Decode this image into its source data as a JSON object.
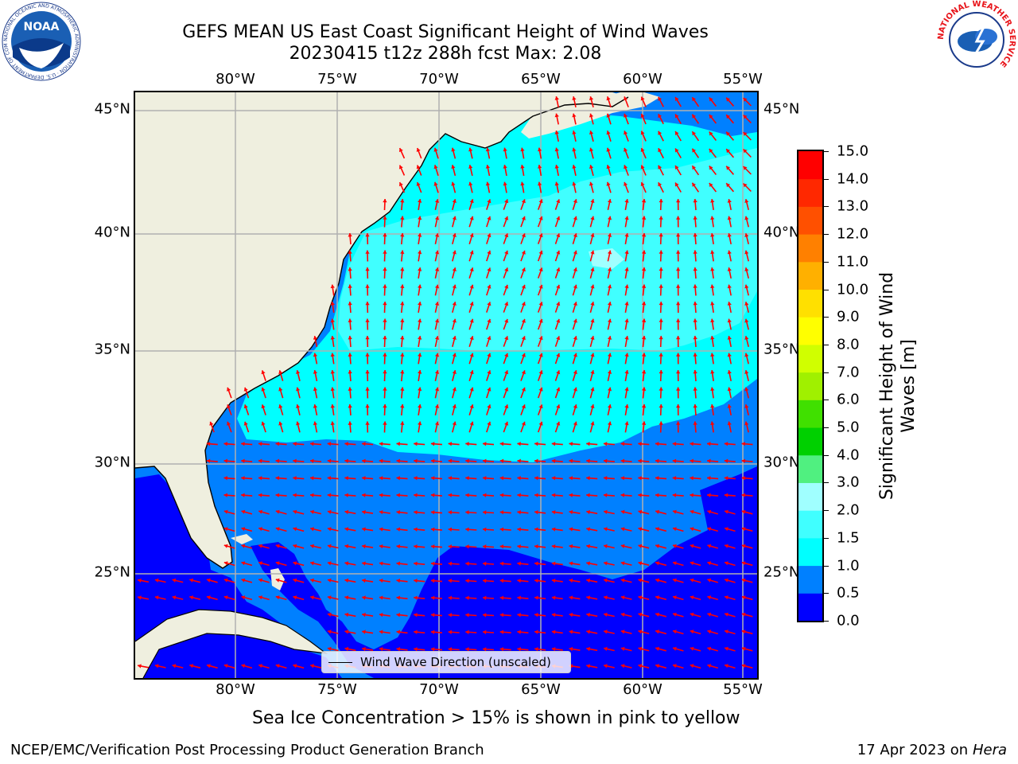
{
  "title": {
    "line1": "GEFS MEAN US East Coast Significant Height of Wind Waves",
    "line2": "20230415 t12z 288h fcst   Max: 2.08"
  },
  "map": {
    "lon_ticks": [
      "80°W",
      "75°W",
      "70°W",
      "65°W",
      "60°W",
      "55°W"
    ],
    "lat_ticks": [
      "45°N",
      "40°N",
      "35°N",
      "30°N",
      "25°N"
    ],
    "legend_label": "Wind Wave Direction (unscaled)",
    "arrow_color": "#ff0000",
    "land_color": "#efefdf",
    "grid_color": "#b0b0b0"
  },
  "colorbar": {
    "label": "Significant Height of Wind Waves [m]",
    "ticks": [
      "0.0",
      "0.5",
      "1.0",
      "1.5",
      "2.0",
      "3.0",
      "4.0",
      "5.0",
      "6.0",
      "7.0",
      "8.0",
      "9.0",
      "10.0",
      "11.0",
      "12.0",
      "13.0",
      "14.0",
      "15.0"
    ],
    "colors": [
      "#0000ff",
      "#0080ff",
      "#00ffff",
      "#40ffff",
      "#a0ffff",
      "#50f080",
      "#00d000",
      "#40e000",
      "#a0f000",
      "#d0ff00",
      "#ffff00",
      "#ffe000",
      "#ffb000",
      "#ff8000",
      "#ff5000",
      "#ff2800",
      "#ff0000"
    ]
  },
  "subtitle": "Sea Ice Concentration > 15% is shown in pink to yellow",
  "footer": {
    "left": "NCEP/EMC/Verification Post Processing Product Generation Branch",
    "right_date": "17 Apr 2023 on ",
    "right_host": "Hera"
  },
  "logos": {
    "noaa": "NOAA",
    "noaa_ring": "NATIONAL OCEANIC AND ATMOSPHERIC ADMINISTRATION · U.S. DEPARTMENT OF COMMERCE ·",
    "nws_ring": "NATIONAL WEATHER SERVICE"
  }
}
